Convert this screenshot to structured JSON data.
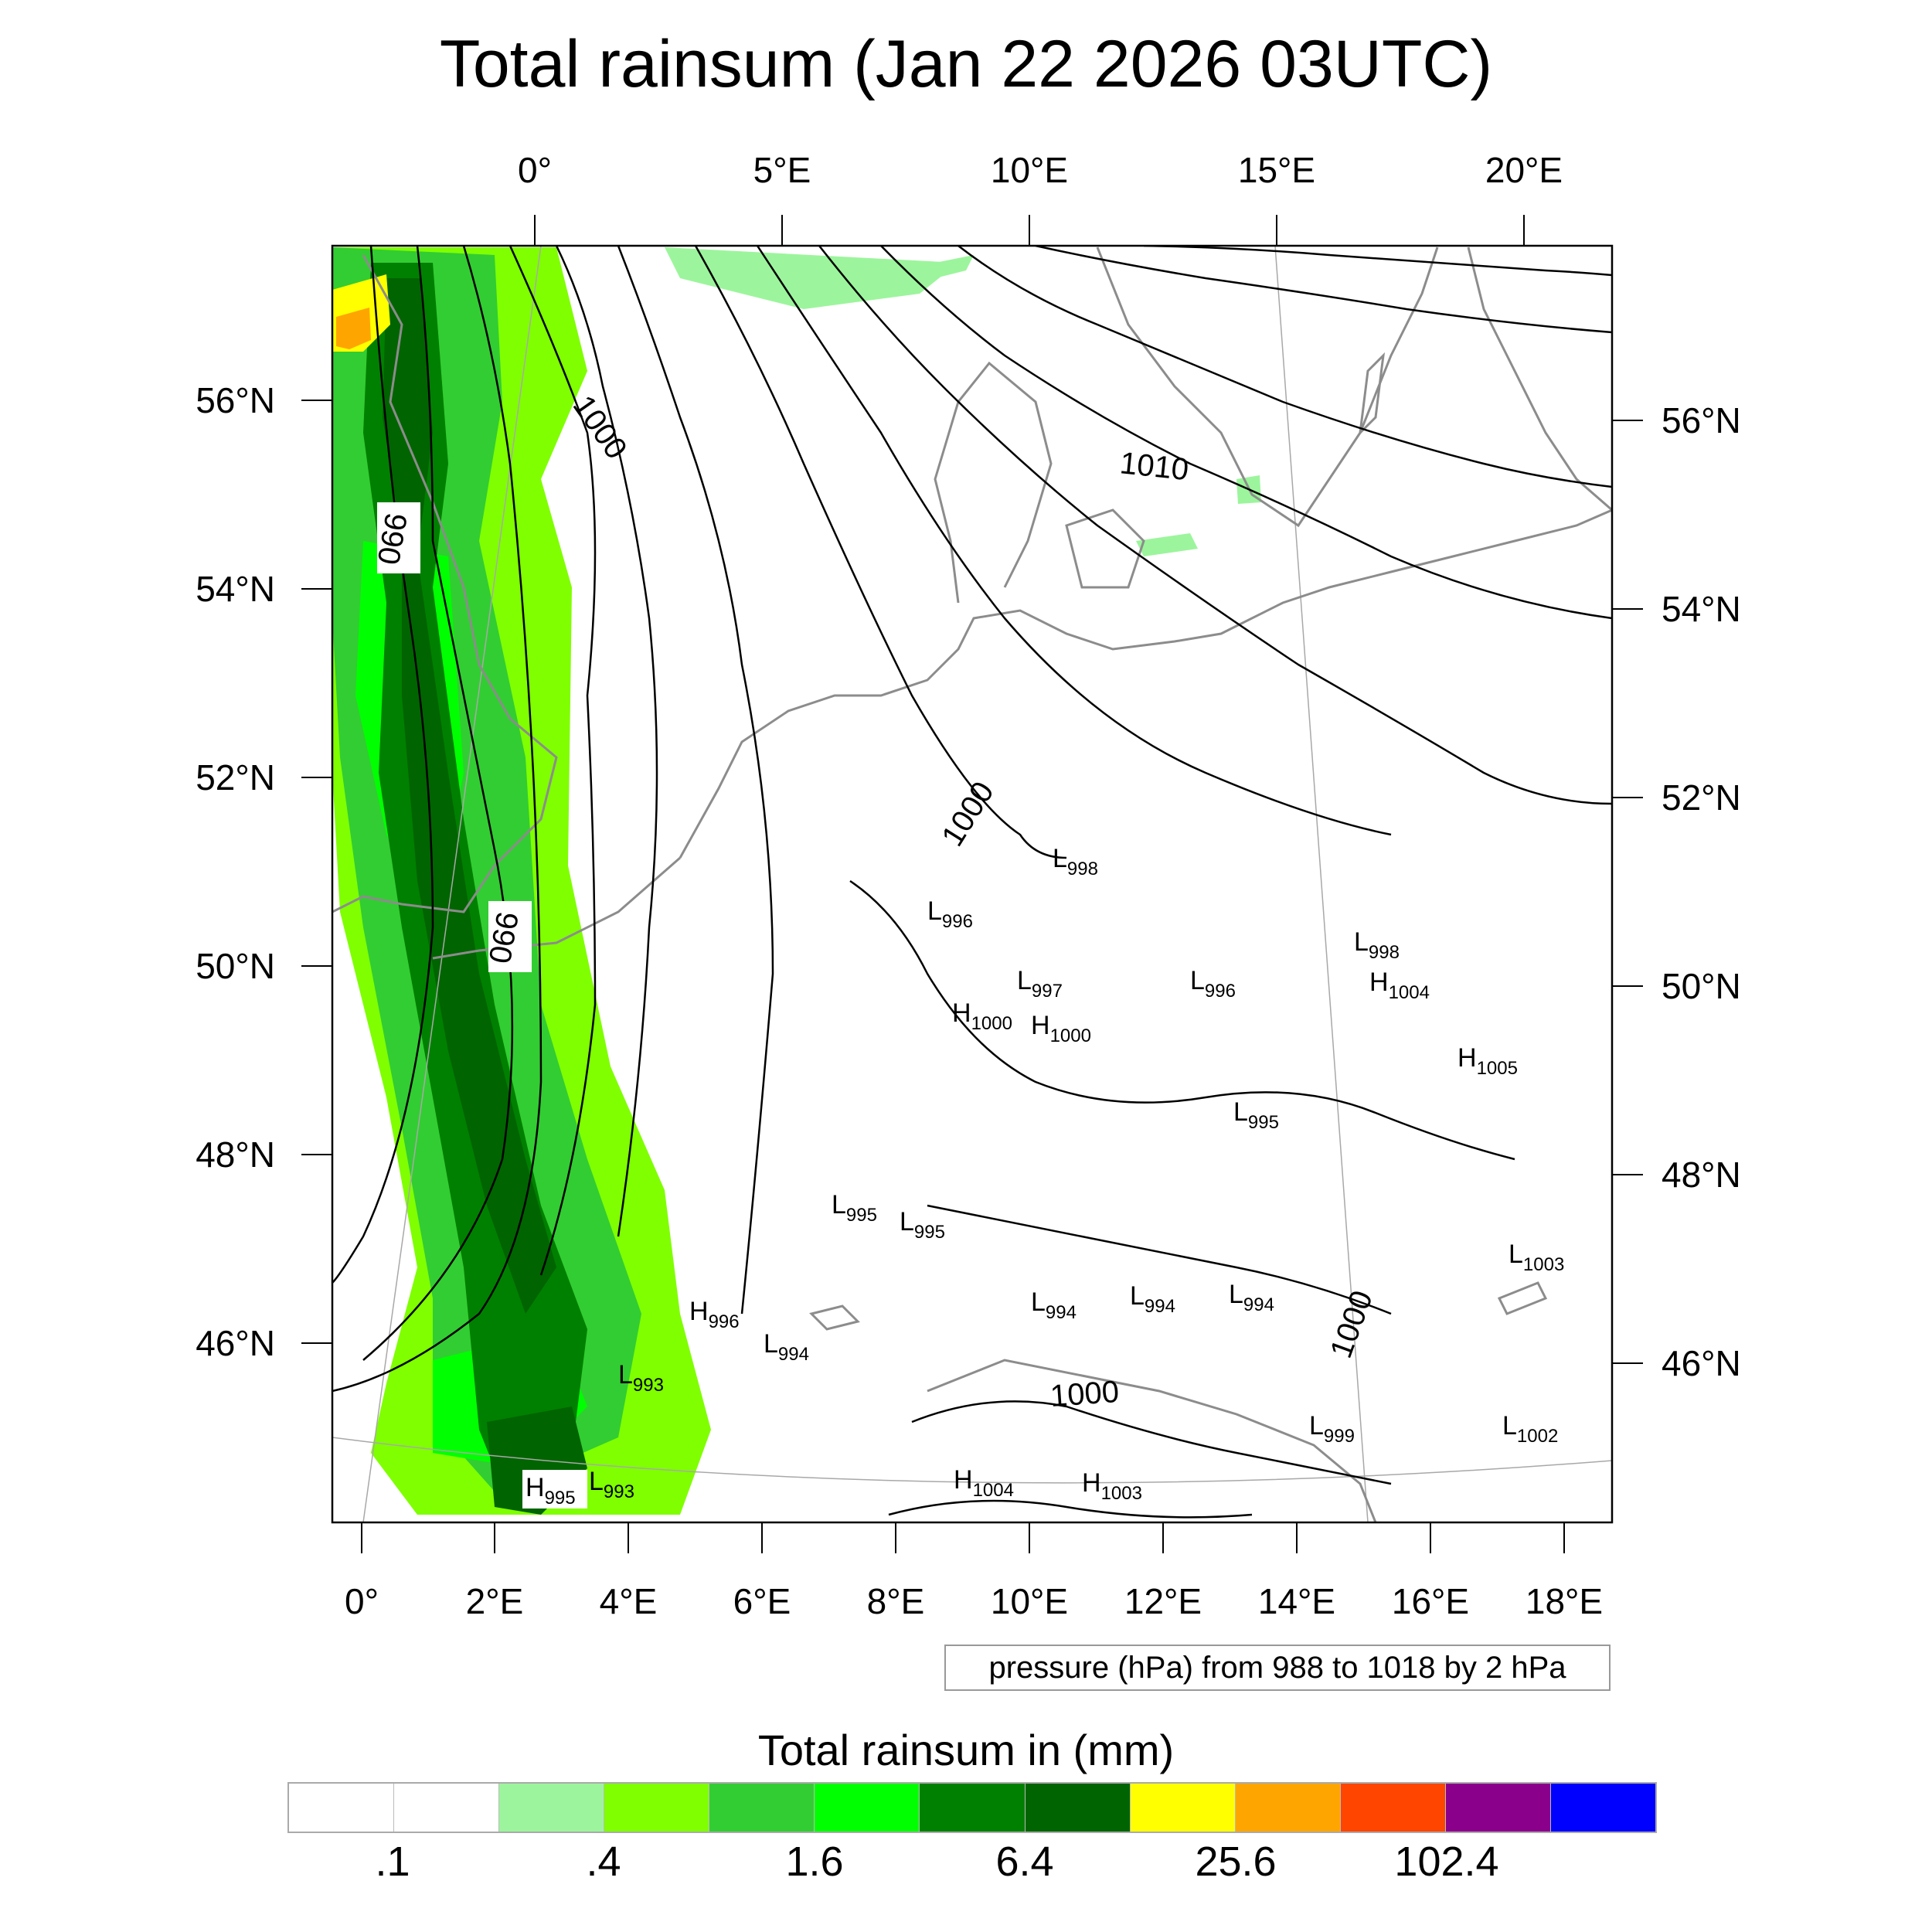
{
  "title": "Total rainsum (Jan 22 2026 03UTC)",
  "map": {
    "top_lon_labels": [
      "0°",
      "5°E",
      "10°E",
      "15°E",
      "20°E"
    ],
    "bottom_lon_labels": [
      "0°",
      "2°E",
      "4°E",
      "6°E",
      "8°E",
      "10°E",
      "12°E",
      "14°E",
      "16°E",
      "18°E"
    ],
    "left_lat_labels": [
      "56°N",
      "54°N",
      "52°N",
      "50°N",
      "48°N",
      "46°N"
    ],
    "right_lat_labels": [
      "56°N",
      "54°N",
      "52°N",
      "50°N",
      "48°N",
      "46°N"
    ],
    "contour_labels": [
      "1000",
      "1010",
      "990",
      "990",
      "1000",
      "1000",
      "1000"
    ],
    "pressure_centers": [
      {
        "type": "L",
        "value": "998"
      },
      {
        "type": "L",
        "value": "996"
      },
      {
        "type": "L",
        "value": "997"
      },
      {
        "type": "H",
        "value": "1000"
      },
      {
        "type": "H",
        "value": "1000"
      },
      {
        "type": "L",
        "value": "996"
      },
      {
        "type": "L",
        "value": "998"
      },
      {
        "type": "H",
        "value": "1004"
      },
      {
        "type": "H",
        "value": "1005"
      },
      {
        "type": "L",
        "value": "995"
      },
      {
        "type": "L",
        "value": "995"
      },
      {
        "type": "L",
        "value": "995"
      },
      {
        "type": "H",
        "value": "996"
      },
      {
        "type": "L",
        "value": "994"
      },
      {
        "type": "L",
        "value": "993"
      },
      {
        "type": "L",
        "value": "994"
      },
      {
        "type": "L",
        "value": "994"
      },
      {
        "type": "L",
        "value": "994"
      },
      {
        "type": "L",
        "value": "1003"
      },
      {
        "type": "L",
        "value": "999"
      },
      {
        "type": "L",
        "value": "1002"
      },
      {
        "type": "H",
        "value": "1004"
      },
      {
        "type": "H",
        "value": "1003"
      },
      {
        "type": "H",
        "value": "995"
      },
      {
        "type": "L",
        "value": "993"
      }
    ],
    "colors": {
      "contour": "#000000",
      "coast": "#8c8c8c",
      "rain_light": "#9cf59c",
      "rain_lime": "#7fff00",
      "rain_mid": "#32cd32",
      "rain_green": "#00ff00",
      "rain_dark": "#008000",
      "rain_darker": "#006400",
      "rain_yellow": "#ffff00",
      "rain_orange": "#ffa500"
    }
  },
  "pressure_note": "pressure (hPa) from 988 to 1018 by 2 hPa",
  "colorbar": {
    "title": "Total rainsum in (mm)",
    "colors": [
      "#ffffff",
      "#ffffff",
      "#9cf59c",
      "#7fff00",
      "#32cd32",
      "#00ff00",
      "#008000",
      "#006400",
      "#ffff00",
      "#ffa500",
      "#ff4500",
      "#8b008b",
      "#0000ff"
    ],
    "labels": [
      ".1",
      ".4",
      "1.6",
      "6.4",
      "25.6",
      "102.4"
    ]
  }
}
